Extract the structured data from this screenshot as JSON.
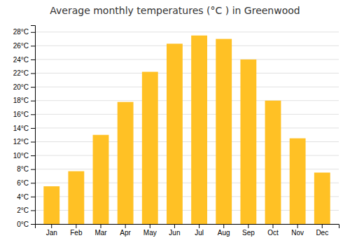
{
  "chart_data": {
    "type": "bar",
    "title": "Average monthly temperatures (°C ) in Greenwood",
    "categories": [
      "Jan",
      "Feb",
      "Mar",
      "Apr",
      "May",
      "Jun",
      "Jul",
      "Aug",
      "Sep",
      "Oct",
      "Nov",
      "Dec"
    ],
    "values": [
      5.5,
      7.7,
      13.0,
      17.8,
      22.2,
      26.3,
      27.5,
      27.0,
      24.0,
      18.0,
      12.5,
      7.5
    ],
    "color": "#FFC125",
    "ylim": [
      0,
      29
    ],
    "yticks": [
      {
        "value": 0,
        "label": "0°C"
      },
      {
        "value": 2,
        "label": "2°C"
      },
      {
        "value": 4,
        "label": "4°C"
      },
      {
        "value": 6,
        "label": "6°C"
      },
      {
        "value": 8,
        "label": "8°C"
      },
      {
        "value": 10,
        "label": "10°C"
      },
      {
        "value": 12,
        "label": "12°C"
      },
      {
        "value": 14,
        "label": "14°C"
      },
      {
        "value": 16,
        "label": "16°C"
      },
      {
        "value": 18,
        "label": "18°C"
      },
      {
        "value": 20,
        "label": "20°C"
      },
      {
        "value": 22,
        "label": "22°C"
      },
      {
        "value": 24,
        "label": "24°C"
      },
      {
        "value": 26,
        "label": "26°C"
      },
      {
        "value": 28,
        "label": "28°C"
      }
    ],
    "grid": true
  }
}
